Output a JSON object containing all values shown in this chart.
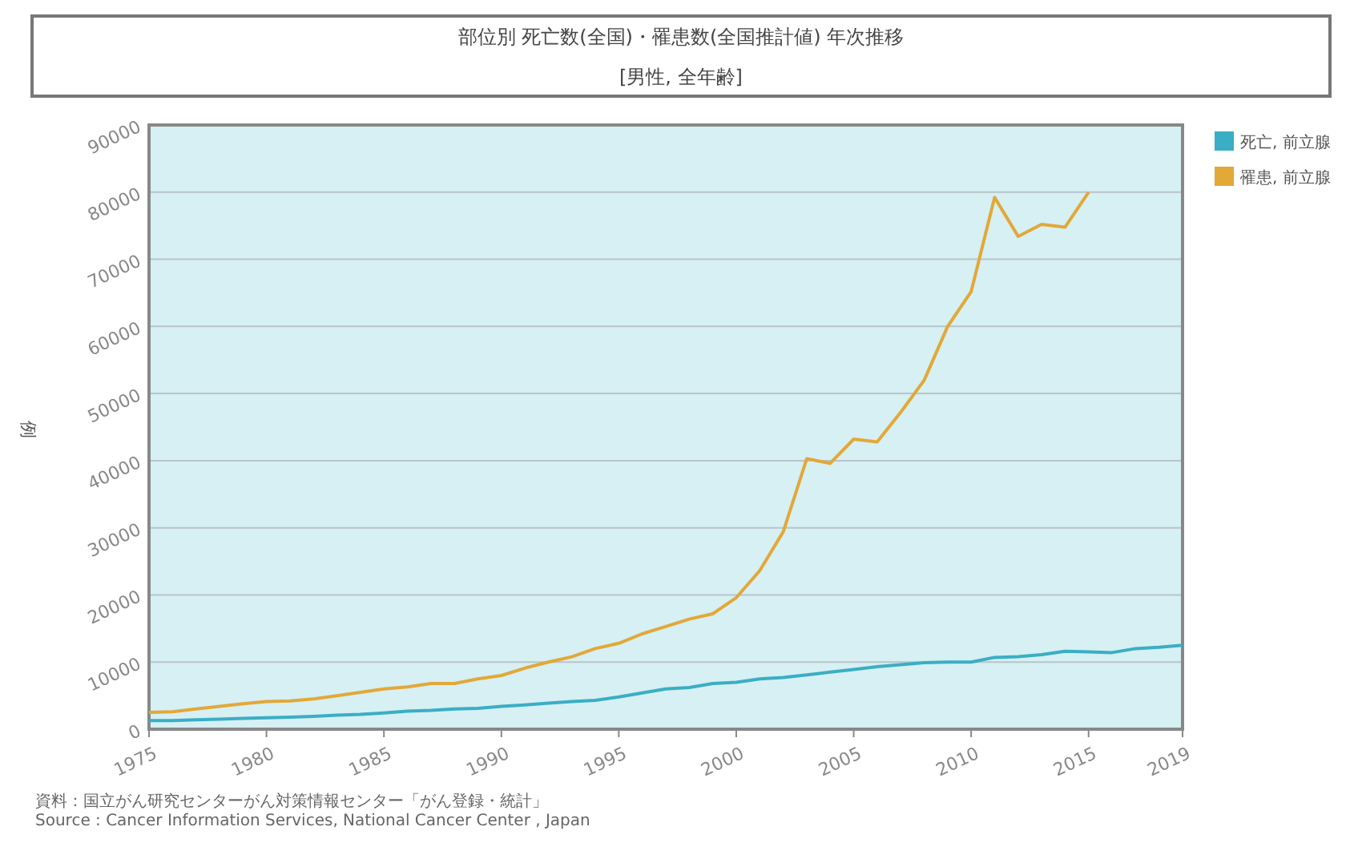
{
  "chart_data": {
    "type": "line",
    "title": "部位別 死亡数(全国)・罹患数(全国推計値) 年次推移",
    "subtitle": "[男性, 全年齢]",
    "ylabel": "例",
    "xlim": [
      1975,
      2019
    ],
    "xticks": [
      1975,
      1980,
      1985,
      1990,
      1995,
      2000,
      2005,
      2010,
      2015,
      2019
    ],
    "ylim": [
      0,
      90000
    ],
    "yticks": [
      0,
      10000,
      20000,
      30000,
      40000,
      50000,
      60000,
      70000,
      80000,
      90000
    ],
    "grid": "y",
    "legend": "top right",
    "marker": "none",
    "line_style": "solid",
    "annotations": [
      "資料：国立がん研究センターがん対策情報センター「がん登録・統計」",
      "Source : Cancer Information Services, National Cancer Center , Japan"
    ],
    "series": [
      {
        "name": "死亡, 前立腺",
        "color": "#3aaec4",
        "x": [
          1975,
          1976,
          1977,
          1978,
          1979,
          1980,
          1981,
          1982,
          1983,
          1984,
          1985,
          1986,
          1987,
          1988,
          1989,
          1990,
          1991,
          1992,
          1993,
          1994,
          1995,
          1996,
          1997,
          1998,
          1999,
          2000,
          2001,
          2002,
          2003,
          2004,
          2005,
          2006,
          2007,
          2008,
          2009,
          2010,
          2011,
          2012,
          2013,
          2014,
          2015,
          2016,
          2017,
          2018,
          2019
        ],
        "values": [
          1300,
          1300,
          1400,
          1500,
          1600,
          1700,
          1800,
          1900,
          2100,
          2200,
          2400,
          2700,
          2800,
          3000,
          3100,
          3400,
          3600,
          3900,
          4100,
          4300,
          4800,
          5400,
          6000,
          6200,
          6800,
          7000,
          7500,
          7700,
          8100,
          8500,
          8900,
          9300,
          9600,
          9900,
          10000,
          10000,
          10700,
          10800,
          11100,
          11600,
          11500,
          11400,
          12000,
          12200,
          12500
        ]
      },
      {
        "name": "罹患, 前立腺",
        "color": "#e2a838",
        "x": [
          1975,
          1976,
          1977,
          1978,
          1979,
          1980,
          1981,
          1982,
          1983,
          1984,
          1985,
          1986,
          1987,
          1988,
          1989,
          1990,
          1991,
          1992,
          1993,
          1994,
          1995,
          1996,
          1997,
          1998,
          1999,
          2000,
          2001,
          2002,
          2003,
          2004,
          2005,
          2006,
          2007,
          2008,
          2009,
          2010,
          2011,
          2012,
          2013,
          2014,
          2015
        ],
        "values": [
          2500,
          2600,
          3000,
          3400,
          3800,
          4100,
          4200,
          4500,
          5000,
          5500,
          6000,
          6300,
          6800,
          6800,
          7500,
          8000,
          9100,
          10000,
          10800,
          12000,
          12800,
          14200,
          15300,
          16400,
          17200,
          19600,
          23600,
          29400,
          40300,
          39600,
          43200,
          42800,
          47200,
          52000,
          60000,
          65200,
          79200,
          73400,
          75200,
          74800,
          80000
        ]
      }
    ]
  }
}
